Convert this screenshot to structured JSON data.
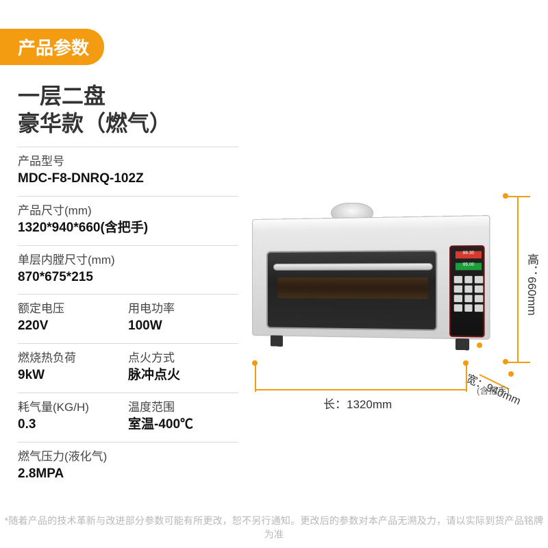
{
  "badge": "产品参数",
  "title": {
    "line1": "一层二盘",
    "line2": "豪华款（燃气）"
  },
  "specs": [
    [
      {
        "label": "产品型号",
        "value": "MDC-F8-DNRQ-102Z"
      }
    ],
    [
      {
        "label": "产品尺寸(mm)",
        "value": "1320*940*660(含把手)"
      }
    ],
    [
      {
        "label": "单层内膛尺寸(mm)",
        "value": "870*675*215"
      }
    ],
    [
      {
        "label": "额定电压",
        "value": "220V"
      },
      {
        "label": "用电功率",
        "value": "100W"
      }
    ],
    [
      {
        "label": "燃烧热负荷",
        "value": "9kW"
      },
      {
        "label": "点火方式",
        "value": "脉冲点火"
      }
    ],
    [
      {
        "label": "耗气量(KG/H)",
        "value": "0.3"
      },
      {
        "label": "温度范围",
        "value": "室温-400℃"
      }
    ],
    [
      {
        "label": "燃气压力(液化气)",
        "value": "2.8MPA"
      }
    ]
  ],
  "dimensions": {
    "height": "高：660mm",
    "width": "宽：940mm",
    "width_sub": "(含把手)",
    "length": "长：1320mm"
  },
  "panel": {
    "led1": "86.30",
    "led2": "95.00"
  },
  "colors": {
    "accent": "#f39c12",
    "text": "#333333",
    "value": "#111111",
    "divider": "#d9d9d9",
    "footnote": "#b8b8b8",
    "led_red": "#d63a2e",
    "led_green": "#1e9d3a"
  },
  "footnote": "*随着产品的技术革新与改进部分参数可能有所更改，恕不另行通知。更改后的参数对本产品无溯及力，请以实际到货产品铭牌为准"
}
